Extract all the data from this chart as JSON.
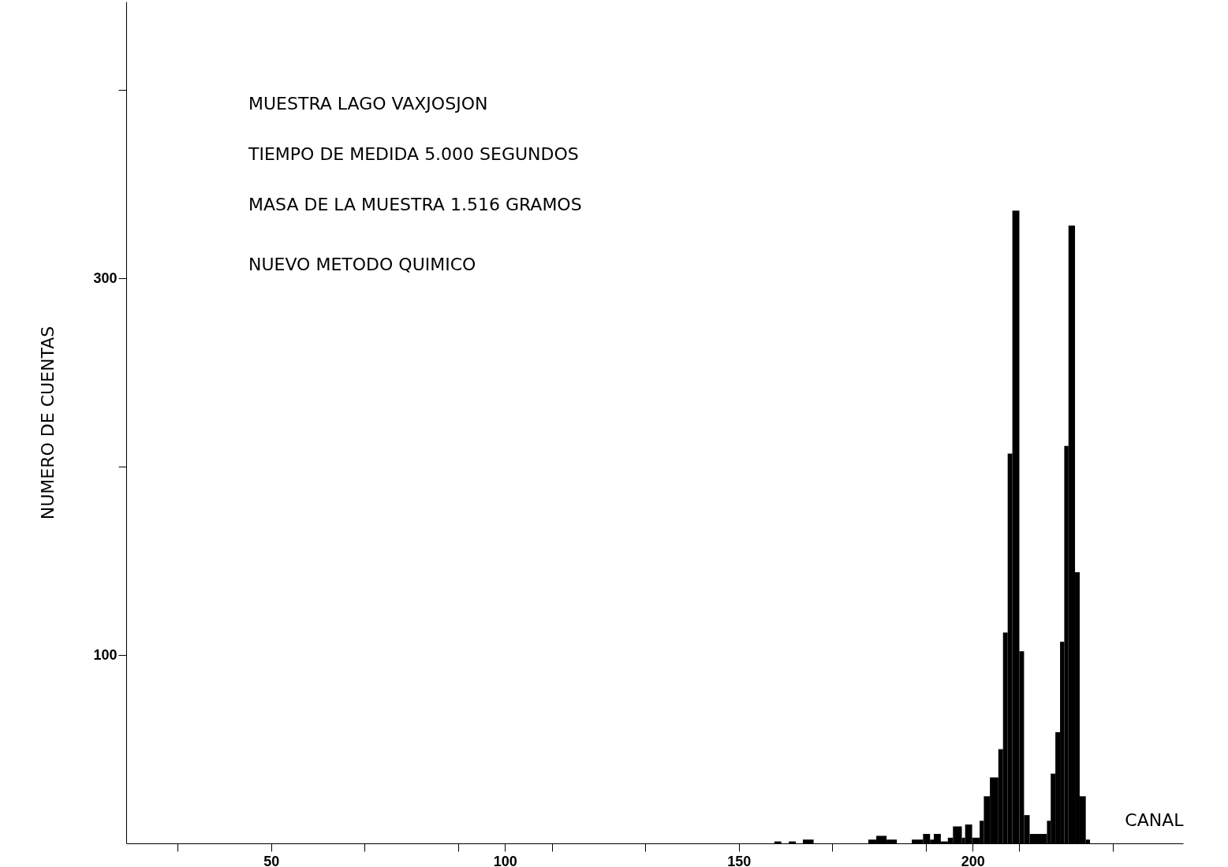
{
  "chart_data": {
    "type": "histogram",
    "xlabel": "CANAL",
    "ylabel": "NUMERO DE CUENTAS",
    "annotations": [
      "MUESTRA LAGO VAXJOSJON",
      "TIEMPO DE MEDIDA 5.000 SEGUNDOS",
      "MASA DE LA MUESTRA 1.516 GRAMOS",
      "NUEVO METODO QUIMICO"
    ],
    "bins": [
      157.6,
      159.1,
      160.7,
      162.2,
      163.7,
      166.0,
      177.7,
      179.4,
      181.6,
      183.8,
      187.0,
      189.4,
      190.9,
      191.7,
      193.2,
      194.7,
      195.8,
      197.7,
      198.4,
      199.9,
      201.5,
      202.4,
      203.7,
      205.5,
      206.5,
      207.5,
      208.5,
      210.0,
      211.0,
      212.2,
      215.9,
      216.7,
      217.7,
      218.7,
      219.6,
      220.5,
      221.9,
      222.9,
      224.2,
      225.1
    ],
    "values": [
      1,
      0,
      1,
      0,
      2,
      0,
      2,
      4,
      2,
      0,
      2,
      5,
      2,
      5,
      1,
      3,
      9,
      3,
      10,
      3,
      12,
      25,
      35,
      50,
      112,
      207,
      336,
      102,
      15,
      5,
      12,
      37,
      59,
      107,
      211,
      328,
      144,
      25,
      2
    ],
    "color": "#000000",
    "xlim": [
      19,
      245
    ],
    "xticks": [
      {
        "value": 30,
        "label": null
      },
      50,
      {
        "value": 70,
        "label": null
      },
      {
        "value": 90,
        "label": null
      },
      100,
      {
        "value": 110,
        "label": null
      },
      {
        "value": 130,
        "label": null
      },
      150,
      {
        "value": 170,
        "label": null
      },
      {
        "value": 190,
        "label": null
      },
      200,
      {
        "value": 210,
        "label": null
      },
      {
        "value": 230,
        "label": null
      }
    ],
    "ylim": [
      0,
      447
    ],
    "yticks": [
      100,
      {
        "value": 200,
        "label": null
      },
      300,
      {
        "value": 400,
        "label": null
      }
    ],
    "grid": false
  }
}
